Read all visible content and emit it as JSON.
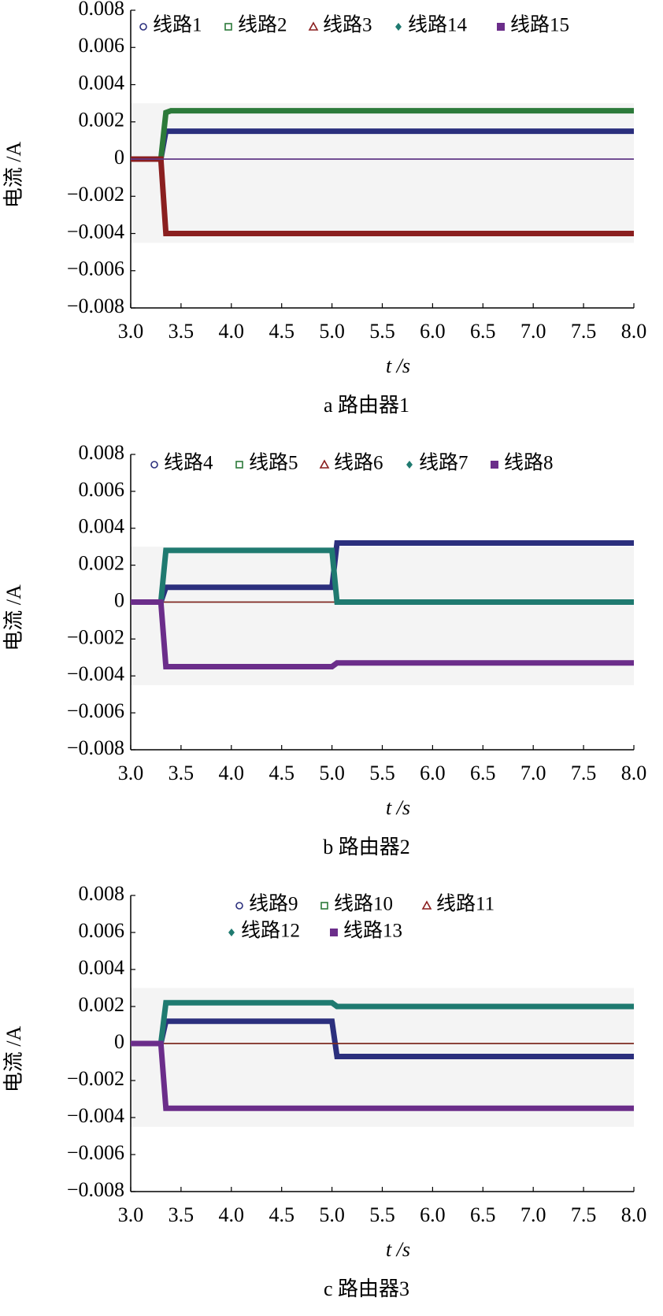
{
  "chart_data": [
    {
      "type": "line",
      "caption": "a 路由器1",
      "xlabel": "t /s",
      "ylabel": "电流 /A",
      "x": [
        3.0,
        3.3,
        3.35,
        3.4,
        5.0,
        5.05,
        8.0
      ],
      "series": [
        {
          "name": "线路1",
          "color": "#2b2f7d",
          "marker": "circle",
          "values": [
            0,
            0,
            0.0015,
            0.0015,
            0.0015,
            0.0015,
            0.0015
          ]
        },
        {
          "name": "线路2",
          "color": "#2c7a3a",
          "marker": "square-open",
          "values": [
            0,
            0,
            0.0025,
            0.0026,
            0.0026,
            0.0026,
            0.0026
          ]
        },
        {
          "name": "线路3",
          "color": "#8a1f1f",
          "marker": "triangle",
          "values": [
            0,
            0,
            -0.004,
            -0.004,
            -0.004,
            -0.004,
            -0.004
          ]
        },
        {
          "name": "线路14",
          "color": "#1f7a70",
          "marker": "diamond",
          "values": [
            0,
            0,
            0,
            0,
            0,
            0,
            0
          ]
        },
        {
          "name": "线路15",
          "color": "#6b2d8a",
          "marker": "square",
          "values": [
            0,
            0,
            0,
            0,
            0,
            0,
            0
          ]
        }
      ],
      "xlim": [
        3,
        8
      ],
      "ylim": [
        -0.008,
        0.008
      ],
      "xticks": [
        {
          "value": 3,
          "label": "3.0"
        },
        {
          "value": 3.5,
          "label": "3.5"
        },
        {
          "value": 4,
          "label": "4.0"
        },
        {
          "value": 4.5,
          "label": "4.5"
        },
        {
          "value": 5,
          "label": "5.0"
        },
        {
          "value": 5.5,
          "label": "5.5"
        },
        {
          "value": 6,
          "label": "6.0"
        },
        {
          "value": 6.5,
          "label": "6.5"
        },
        {
          "value": 7,
          "label": "7.0"
        },
        {
          "value": 7.5,
          "label": "7.5"
        },
        {
          "value": 8,
          "label": "8.0"
        }
      ],
      "yticks": [
        0.008,
        0.006,
        0.004,
        0.002,
        0,
        {
          "value": -0.002,
          "label": "−0.002"
        },
        {
          "value": -0.004,
          "label": "−0.004"
        },
        {
          "value": -0.006,
          "label": "−0.006"
        },
        {
          "value": -0.008,
          "label": "−0.008"
        }
      ]
    },
    {
      "type": "line",
      "caption": "b 路由器2",
      "xlabel": "t /s",
      "ylabel": "电流 /A",
      "x": [
        3.0,
        3.3,
        3.35,
        3.4,
        5.0,
        5.05,
        8.0
      ],
      "series": [
        {
          "name": "线路4",
          "color": "#2b2f7d",
          "marker": "circle",
          "values": [
            0,
            0,
            0.0008,
            0.0008,
            0.0008,
            0.0032,
            0.0032
          ]
        },
        {
          "name": "线路5",
          "color": "#2c7a3a",
          "marker": "square-open",
          "values": [
            0,
            0,
            0,
            0,
            0,
            0,
            0
          ]
        },
        {
          "name": "线路6",
          "color": "#8a1f1f",
          "marker": "triangle",
          "values": [
            0,
            0,
            0,
            0,
            0,
            0,
            0
          ]
        },
        {
          "name": "线路7",
          "color": "#1f7a70",
          "marker": "diamond",
          "values": [
            0,
            0,
            0.0028,
            0.0028,
            0.0028,
            0,
            0
          ]
        },
        {
          "name": "线路8",
          "color": "#6b2d8a",
          "marker": "square",
          "values": [
            0,
            0,
            -0.0035,
            -0.0035,
            -0.0035,
            -0.0033,
            -0.0033
          ]
        }
      ],
      "xlim": [
        3,
        8
      ],
      "ylim": [
        -0.008,
        0.008
      ],
      "xticks": [
        {
          "value": 3,
          "label": "3.0"
        },
        {
          "value": 3.5,
          "label": "3.5"
        },
        {
          "value": 4,
          "label": "4.0"
        },
        {
          "value": 4.5,
          "label": "4.5"
        },
        {
          "value": 5,
          "label": "5.0"
        },
        {
          "value": 5.5,
          "label": "5.5"
        },
        {
          "value": 6,
          "label": "6.0"
        },
        {
          "value": 6.5,
          "label": "6.5"
        },
        {
          "value": 7,
          "label": "7.0"
        },
        {
          "value": 7.5,
          "label": "7.5"
        },
        {
          "value": 8,
          "label": "8.0"
        }
      ],
      "yticks": [
        0.008,
        0.006,
        0.004,
        0.002,
        0,
        {
          "value": -0.002,
          "label": "−0.002"
        },
        {
          "value": -0.004,
          "label": "−0.004"
        },
        {
          "value": -0.006,
          "label": "−0.006"
        },
        {
          "value": -0.008,
          "label": "−0.008"
        }
      ]
    },
    {
      "type": "line",
      "caption": "c 路由器3",
      "xlabel": "t /s",
      "ylabel": "电流 /A",
      "x": [
        3.0,
        3.3,
        3.35,
        3.4,
        5.0,
        5.05,
        8.0
      ],
      "series": [
        {
          "name": "线路9",
          "color": "#2b2f7d",
          "marker": "circle",
          "values": [
            0,
            0,
            0.0012,
            0.0012,
            0.0012,
            -0.0007,
            -0.0007
          ]
        },
        {
          "name": "线路10",
          "color": "#2c7a3a",
          "marker": "square-open",
          "values": [
            0,
            0,
            0,
            0,
            0,
            0,
            0
          ]
        },
        {
          "name": "线路11",
          "color": "#8a1f1f",
          "marker": "triangle",
          "values": [
            0,
            0,
            0,
            0,
            0,
            0,
            0
          ]
        },
        {
          "name": "线路12",
          "color": "#1f7a70",
          "marker": "diamond",
          "values": [
            0,
            0,
            0.0022,
            0.0022,
            0.0022,
            0.002,
            0.002
          ]
        },
        {
          "name": "线路13",
          "color": "#6b2d8a",
          "marker": "square",
          "values": [
            0,
            0,
            -0.0035,
            -0.0035,
            -0.0035,
            -0.0035,
            -0.0035
          ]
        }
      ],
      "xlim": [
        3,
        8
      ],
      "ylim": [
        -0.008,
        0.008
      ],
      "xticks": [
        {
          "value": 3,
          "label": "3.0"
        },
        {
          "value": 3.5,
          "label": "3.5"
        },
        {
          "value": 4,
          "label": "4.0"
        },
        {
          "value": 4.5,
          "label": "4.5"
        },
        {
          "value": 5,
          "label": "5.0"
        },
        {
          "value": 5.5,
          "label": "5.5"
        },
        {
          "value": 6,
          "label": "6.0"
        },
        {
          "value": 6.5,
          "label": "6.5"
        },
        {
          "value": 7,
          "label": "7.0"
        },
        {
          "value": 7.5,
          "label": "7.5"
        },
        {
          "value": 8,
          "label": "8.0"
        }
      ],
      "yticks": [
        0.008,
        0.006,
        0.004,
        0.002,
        0,
        {
          "value": -0.002,
          "label": "−0.002"
        },
        {
          "value": -0.004,
          "label": "−0.004"
        },
        {
          "value": -0.006,
          "label": "−0.006"
        },
        {
          "value": -0.008,
          "label": "−0.008"
        }
      ]
    }
  ]
}
